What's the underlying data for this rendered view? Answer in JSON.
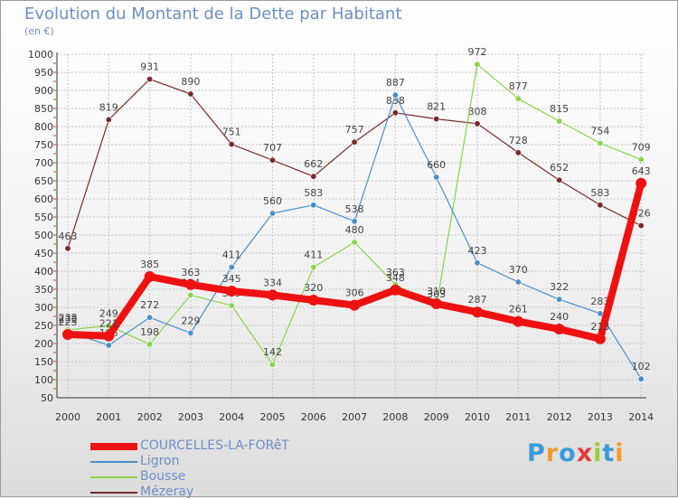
{
  "title": "Evolution du Montant de la Dette par Habitant",
  "subtitle": "(en €)",
  "logo_text": "Proxiti",
  "chart_data": {
    "type": "line",
    "title": "Evolution du Montant de la Dette par Habitant",
    "ylabel": "(en €)",
    "ylim": [
      50,
      1000
    ],
    "yticks": [
      50,
      100,
      150,
      200,
      250,
      300,
      350,
      400,
      450,
      500,
      550,
      600,
      650,
      700,
      750,
      800,
      850,
      900,
      950,
      1000
    ],
    "categories": [
      "2000",
      "2001",
      "2002",
      "2003",
      "2004",
      "2005",
      "2006",
      "2007",
      "2008",
      "2009",
      "2010",
      "2011",
      "2012",
      "2013",
      "2014"
    ],
    "grid": true,
    "legend_position": "bottom-left",
    "series": [
      {
        "name": "Mézeray",
        "color": "#7a2a2a",
        "values": [
          463,
          819,
          931,
          890,
          751,
          707,
          662,
          757,
          838,
          821,
          808,
          728,
          652,
          583,
          526
        ]
      },
      {
        "name": "Bousse",
        "color": "#88d448",
        "values": [
          238,
          249,
          198,
          334,
          305,
          142,
          411,
          480,
          363,
          303,
          972,
          877,
          815,
          754,
          709
        ]
      },
      {
        "name": "Ligron",
        "color": "#4a8ec8",
        "values": [
          233,
          195,
          272,
          229,
          411,
          560,
          583,
          538,
          887,
          660,
          423,
          370,
          322,
          283,
          102
        ]
      },
      {
        "name": "COURCELLES-LA-FORêT",
        "color": "#ee1111",
        "values": [
          225,
          221,
          385,
          363,
          345,
          334,
          320,
          306,
          348,
          310,
          287,
          261,
          240,
          213,
          643
        ]
      }
    ]
  }
}
